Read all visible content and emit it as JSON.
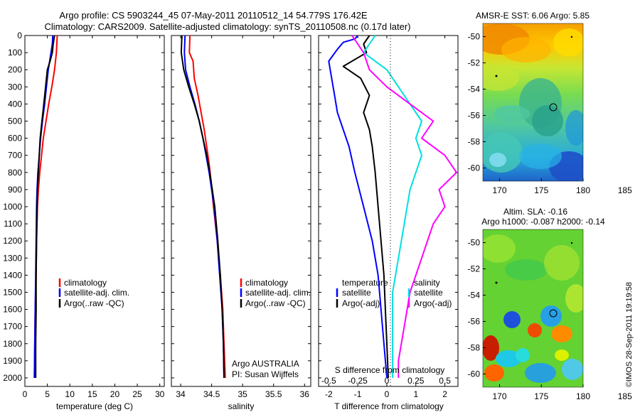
{
  "header": {
    "title_line1": "Argo profile: CS 5903244_45 07-May-2011 20110512_14 54.779S 176.42E",
    "title_line2": "Climatology: CARS2009. Satellite-adjusted climatology: synTS_20110508.nc (0.17d later)"
  },
  "credit": "©IMOS 28-Sep-2011 19:19:58",
  "colors": {
    "climatology": "#ff0000",
    "satellite": "#0000ff",
    "argo": "#000000",
    "salinity_satellite": "#00e0e0",
    "salinity_argo": "#ff00ff"
  },
  "chart_data": [
    {
      "type": "line",
      "name": "temperature-profile",
      "xlabel": "temperature (deg C)",
      "ylabel": "",
      "xlim": [
        0,
        31
      ],
      "ylim": [
        2050,
        0
      ],
      "xticks": [
        0,
        5,
        10,
        15,
        20,
        25,
        30
      ],
      "yticks": [
        0,
        100,
        200,
        300,
        400,
        500,
        600,
        700,
        800,
        900,
        1000,
        1100,
        1200,
        1300,
        1400,
        1500,
        1600,
        1700,
        1800,
        1900,
        2000
      ],
      "legend": [
        "climatology",
        "satellite-adj. clim.",
        "Argo(..raw -QC)"
      ],
      "series": [
        {
          "name": "climatology",
          "points": [
            [
              7.2,
              0
            ],
            [
              7.0,
              100
            ],
            [
              6.6,
              200
            ],
            [
              6.0,
              300
            ],
            [
              5.3,
              400
            ],
            [
              4.7,
              500
            ],
            [
              4.1,
              600
            ],
            [
              3.7,
              700
            ],
            [
              3.3,
              800
            ],
            [
              3.0,
              900
            ],
            [
              2.8,
              1000
            ],
            [
              2.6,
              1200
            ],
            [
              2.5,
              1400
            ],
            [
              2.3,
              1600
            ],
            [
              2.2,
              1800
            ],
            [
              2.1,
              2000
            ]
          ]
        },
        {
          "name": "satellite-adj. clim.",
          "points": [
            [
              6.2,
              0
            ],
            [
              6.1,
              50
            ],
            [
              5.8,
              100
            ],
            [
              5.5,
              150
            ],
            [
              5.2,
              200
            ],
            [
              4.8,
              300
            ],
            [
              4.4,
              400
            ],
            [
              3.9,
              500
            ],
            [
              3.5,
              600
            ],
            [
              3.2,
              700
            ],
            [
              2.9,
              800
            ],
            [
              2.7,
              900
            ],
            [
              2.6,
              1000
            ],
            [
              2.5,
              1200
            ],
            [
              2.4,
              1400
            ],
            [
              2.3,
              1600
            ],
            [
              2.2,
              1800
            ],
            [
              2.1,
              2000
            ]
          ]
        },
        {
          "name": "Argo(..raw -QC)",
          "points": [
            [
              6.6,
              0
            ],
            [
              6.3,
              50
            ],
            [
              6.1,
              100
            ],
            [
              5.6,
              150
            ],
            [
              5.0,
              200
            ],
            [
              4.6,
              300
            ],
            [
              4.2,
              400
            ],
            [
              3.8,
              500
            ],
            [
              3.4,
              600
            ],
            [
              3.2,
              700
            ],
            [
              3.0,
              800
            ],
            [
              2.8,
              900
            ],
            [
              2.7,
              1000
            ],
            [
              2.6,
              1200
            ],
            [
              2.5,
              1400
            ],
            [
              2.5,
              1600
            ],
            [
              2.4,
              1800
            ],
            [
              2.4,
              2000
            ]
          ]
        }
      ]
    },
    {
      "type": "line",
      "name": "salinity-profile",
      "xlabel": "salinity",
      "ylabel": "",
      "xlim": [
        33.85,
        36.1
      ],
      "ylim": [
        2050,
        0
      ],
      "xticks": [
        34,
        34.5,
        35,
        35.5,
        36
      ],
      "xticklabels": [
        "34",
        "34.5",
        "35",
        "35.5",
        "36"
      ],
      "legend": [
        "climatology",
        "satellite-adj. clim.",
        "Argo(..raw -QC)"
      ],
      "annotation": [
        "Argo AUSTRALIA",
        "PI: Susan Wijffels"
      ],
      "series": [
        {
          "name": "climatology",
          "points": [
            [
              34.15,
              0
            ],
            [
              34.14,
              100
            ],
            [
              34.2,
              150
            ],
            [
              34.22,
              250
            ],
            [
              34.28,
              350
            ],
            [
              34.33,
              450
            ],
            [
              34.38,
              550
            ],
            [
              34.42,
              650
            ],
            [
              34.46,
              750
            ],
            [
              34.49,
              850
            ],
            [
              34.53,
              1000
            ],
            [
              34.59,
              1200
            ],
            [
              34.64,
              1400
            ],
            [
              34.68,
              1600
            ],
            [
              34.7,
              1800
            ],
            [
              34.72,
              2000
            ]
          ]
        },
        {
          "name": "satellite-adj. clim.",
          "points": [
            [
              34.07,
              0
            ],
            [
              34.06,
              100
            ],
            [
              34.08,
              200
            ],
            [
              34.15,
              300
            ],
            [
              34.23,
              400
            ],
            [
              34.3,
              500
            ],
            [
              34.36,
              600
            ],
            [
              34.41,
              700
            ],
            [
              34.46,
              800
            ],
            [
              34.5,
              900
            ],
            [
              34.54,
              1000
            ],
            [
              34.59,
              1200
            ],
            [
              34.63,
              1400
            ],
            [
              34.67,
              1600
            ],
            [
              34.69,
              1800
            ],
            [
              34.7,
              2000
            ]
          ]
        },
        {
          "name": "Argo(..raw -QC)",
          "points": [
            [
              34.02,
              0
            ],
            [
              34.01,
              100
            ],
            [
              34.05,
              200
            ],
            [
              34.13,
              300
            ],
            [
              34.22,
              400
            ],
            [
              34.3,
              500
            ],
            [
              34.36,
              600
            ],
            [
              34.42,
              700
            ],
            [
              34.47,
              800
            ],
            [
              34.51,
              900
            ],
            [
              34.55,
              1000
            ],
            [
              34.6,
              1200
            ],
            [
              34.64,
              1400
            ],
            [
              34.67,
              1600
            ],
            [
              34.69,
              1800
            ],
            [
              34.7,
              2000
            ]
          ]
        }
      ]
    },
    {
      "type": "line",
      "name": "difference-profile",
      "xlabel": "T difference from climatology",
      "toplabel": "S difference from climatology",
      "xlim": [
        -2.35,
        2.45
      ],
      "ylim": [
        2050,
        0
      ],
      "xticks_T": [
        -2,
        -1,
        0,
        1,
        2
      ],
      "xticks_S": [
        -0.5,
        -0.25,
        0,
        0.25,
        0.5
      ],
      "xticklabels_S": [
        "-0.5",
        "-0.25",
        "0",
        "0.25",
        "0.5"
      ],
      "legend": [
        "temperature",
        "satellite",
        "Argo(-adj)",
        "salinity",
        "satellite",
        "Argo(-adj)"
      ],
      "series": [
        {
          "name": "satellite",
          "quantity": "temperature",
          "points": [
            [
              -1.0,
              0
            ],
            [
              -1.1,
              20
            ],
            [
              -1.5,
              40
            ],
            [
              -1.7,
              80
            ],
            [
              -2.0,
              150
            ],
            [
              -1.9,
              250
            ],
            [
              -1.8,
              350
            ],
            [
              -1.7,
              450
            ],
            [
              -1.5,
              550
            ],
            [
              -1.3,
              650
            ],
            [
              -1.1,
              800
            ],
            [
              -0.8,
              1000
            ],
            [
              -0.5,
              1200
            ],
            [
              -0.3,
              1400
            ],
            [
              -0.2,
              1600
            ],
            [
              -0.1,
              1800
            ],
            [
              0,
              2000
            ]
          ]
        },
        {
          "name": "Argo(-adj)",
          "quantity": "temperature",
          "points": [
            [
              -0.6,
              0
            ],
            [
              -0.8,
              50
            ],
            [
              -0.7,
              100
            ],
            [
              -1.5,
              180
            ],
            [
              -0.9,
              250
            ],
            [
              -0.6,
              350
            ],
            [
              -0.8,
              450
            ],
            [
              -0.6,
              550
            ],
            [
              -0.5,
              650
            ],
            [
              -0.4,
              800
            ],
            [
              -0.3,
              1000
            ],
            [
              -0.2,
              1200
            ],
            [
              -0.1,
              1400
            ],
            [
              -0.05,
              1600
            ],
            [
              0,
              1800
            ],
            [
              0.05,
              2000
            ]
          ]
        },
        {
          "name": "satellite",
          "quantity": "salinity",
          "points": [
            [
              -0.1,
              0
            ],
            [
              -0.2,
              100
            ],
            [
              0,
              200
            ],
            [
              0.1,
              300
            ],
            [
              0.2,
              400
            ],
            [
              0.3,
              500
            ],
            [
              0.25,
              600
            ],
            [
              0.3,
              700
            ],
            [
              0.2,
              900
            ],
            [
              0.15,
              1100
            ],
            [
              0.1,
              1300
            ],
            [
              0.05,
              1500
            ],
            [
              0.05,
              1700
            ],
            [
              0.05,
              1900
            ],
            [
              0.05,
              2000
            ]
          ]
        },
        {
          "name": "Argo(-adj)",
          "quantity": "salinity",
          "points": [
            [
              -0.3,
              0
            ],
            [
              -0.2,
              100
            ],
            [
              -0.15,
              200
            ],
            [
              0,
              300
            ],
            [
              0.2,
              400
            ],
            [
              0.4,
              500
            ],
            [
              0.3,
              600
            ],
            [
              0.5,
              700
            ],
            [
              0.6,
              800
            ],
            [
              0.45,
              900
            ],
            [
              0.5,
              1000
            ],
            [
              0.4,
              1100
            ],
            [
              0.35,
              1200
            ],
            [
              0.3,
              1300
            ],
            [
              0.2,
              1500
            ],
            [
              0.15,
              1700
            ],
            [
              0.1,
              1900
            ],
            [
              0.1,
              2000
            ]
          ]
        }
      ]
    },
    {
      "type": "heatmap",
      "name": "sst-map",
      "title": "AMSR-E SST: 6.06 Argo: 5.85",
      "xlim": [
        168,
        185
      ],
      "ylim": [
        -61,
        -49
      ],
      "xticks": [
        170,
        175,
        180,
        185
      ],
      "yticks": [
        -50,
        -52,
        -54,
        -56,
        -58,
        -60
      ],
      "marker": [
        176.42,
        -54.779
      ]
    },
    {
      "type": "heatmap",
      "name": "sla-map",
      "title": "Altim. SLA: -0.16",
      "subtitle": "Argo h1000: -0.087 h2000: -0.14",
      "xlim": [
        168,
        185
      ],
      "ylim": [
        -61,
        -49
      ],
      "xticks": [
        170,
        175,
        180,
        185
      ],
      "yticks": [
        -50,
        -52,
        -54,
        -56,
        -58,
        -60
      ],
      "marker": [
        176.42,
        -54.779
      ]
    }
  ]
}
